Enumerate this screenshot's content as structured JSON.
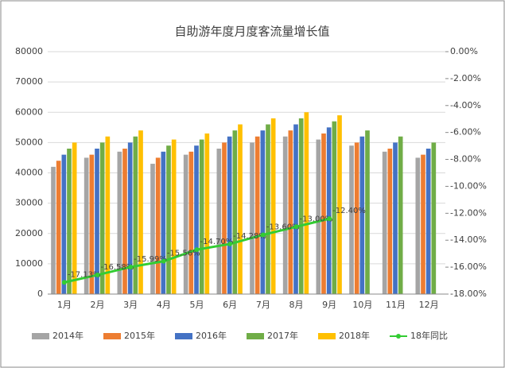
{
  "chart_data": {
    "type": "bar_line",
    "title": "自助游年度月度客流量增长值",
    "categories": [
      "1月",
      "2月",
      "3月",
      "4月",
      "5月",
      "6月",
      "7月",
      "8月",
      "9月",
      "10月",
      "11月",
      "12月"
    ],
    "series": [
      {
        "name": "2014年",
        "color": "#a5a5a5",
        "values": [
          42000,
          45000,
          47000,
          43000,
          46000,
          48000,
          50000,
          52000,
          51000,
          49000,
          47000,
          45000
        ]
      },
      {
        "name": "2015年",
        "color": "#ed7d31",
        "values": [
          44000,
          46000,
          48000,
          45000,
          47000,
          50000,
          52000,
          54000,
          53000,
          50000,
          48000,
          46000
        ]
      },
      {
        "name": "2016年",
        "color": "#4472c4",
        "values": [
          46000,
          48000,
          50000,
          47000,
          49000,
          52000,
          54000,
          56000,
          55000,
          52000,
          50000,
          48000
        ]
      },
      {
        "name": "2017年",
        "color": "#70ad47",
        "values": [
          48000,
          50000,
          52000,
          49000,
          51000,
          54000,
          56000,
          58000,
          57000,
          54000,
          52000,
          50000
        ]
      },
      {
        "name": "2018年",
        "color": "#ffc000",
        "values": [
          50000,
          52000,
          54000,
          51000,
          53000,
          56000,
          58000,
          60000,
          59000,
          null,
          null,
          null
        ]
      },
      {
        "name": "18年同比",
        "color": "#33cc33",
        "axis": "y2",
        "values": [
          -17.13,
          -16.58,
          -15.99,
          -15.56,
          -14.7,
          -14.28,
          -13.6,
          -13.0,
          -12.4,
          null,
          null,
          null
        ],
        "value_labels": [
          "-17.13%",
          "-16.58%",
          "-15.99%",
          "-15.56%",
          "-14.70%",
          "-14.28%",
          "-13.60%",
          "-13.00%",
          "-12.40%",
          null,
          null,
          null
        ]
      }
    ],
    "ylim": [
      0,
      80000
    ],
    "yticks": [
      0,
      10000,
      20000,
      30000,
      40000,
      50000,
      60000,
      70000,
      80000
    ],
    "y2lim": [
      -18,
      0
    ],
    "y2ticks": [
      {
        "value": -18,
        "label": "-18.00%"
      },
      {
        "value": -16,
        "label": "-16.00%"
      },
      {
        "value": -14,
        "label": "-14.00%"
      },
      {
        "value": -12,
        "label": "-12.00%"
      },
      {
        "value": -10,
        "label": "-10.00%"
      },
      {
        "value": -8,
        "label": "-8.00%"
      },
      {
        "value": -6,
        "label": "-6.00%"
      },
      {
        "value": -4,
        "label": "-4.00%"
      },
      {
        "value": -2,
        "label": "-2.00%"
      },
      {
        "value": 0,
        "label": "0.00%"
      }
    ],
    "legend": "bottom"
  }
}
